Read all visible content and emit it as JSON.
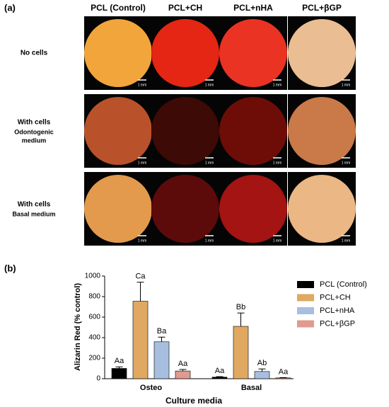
{
  "panel_a": {
    "label": "(a)",
    "columns": [
      "PCL (Control)",
      "PCL+CH",
      "PCL+nHA",
      "PCL+βGP"
    ],
    "rows": [
      [
        "No cells"
      ],
      [
        "With cells",
        "Odontogenic",
        "medium"
      ],
      [
        "With cells",
        "Basal medium"
      ]
    ],
    "scale_label": "1 mm"
  },
  "chart_data": {
    "type": "bar",
    "label": "(b)",
    "categories": [
      "Osteo",
      "Basal"
    ],
    "xlabel": "Culture media",
    "ylabel": "Alizarin Red (% control)",
    "ylim": [
      0,
      1000
    ],
    "yticks": [
      0,
      200,
      400,
      600,
      800,
      1000
    ],
    "legend": "right",
    "series": [
      {
        "name": "PCL (Control)",
        "color": "#000000",
        "values": [
          100,
          15
        ],
        "errors": [
          15,
          5
        ],
        "annotations": [
          "Aa",
          "Aa"
        ]
      },
      {
        "name": "PCL+CH",
        "color": "#e0a860",
        "values": [
          755,
          510
        ],
        "errors": [
          185,
          130
        ],
        "annotations": [
          "Ca",
          "Bb"
        ]
      },
      {
        "name": "PCL+nHA",
        "color": "#a8bedf",
        "values": [
          360,
          70
        ],
        "errors": [
          45,
          25
        ],
        "annotations": [
          "Ba",
          "Ab"
        ]
      },
      {
        "name": "PCL+βGP",
        "color": "#e09a90",
        "values": [
          75,
          8
        ],
        "errors": [
          15,
          3
        ],
        "annotations": [
          "Aa",
          "Aa"
        ]
      }
    ]
  }
}
